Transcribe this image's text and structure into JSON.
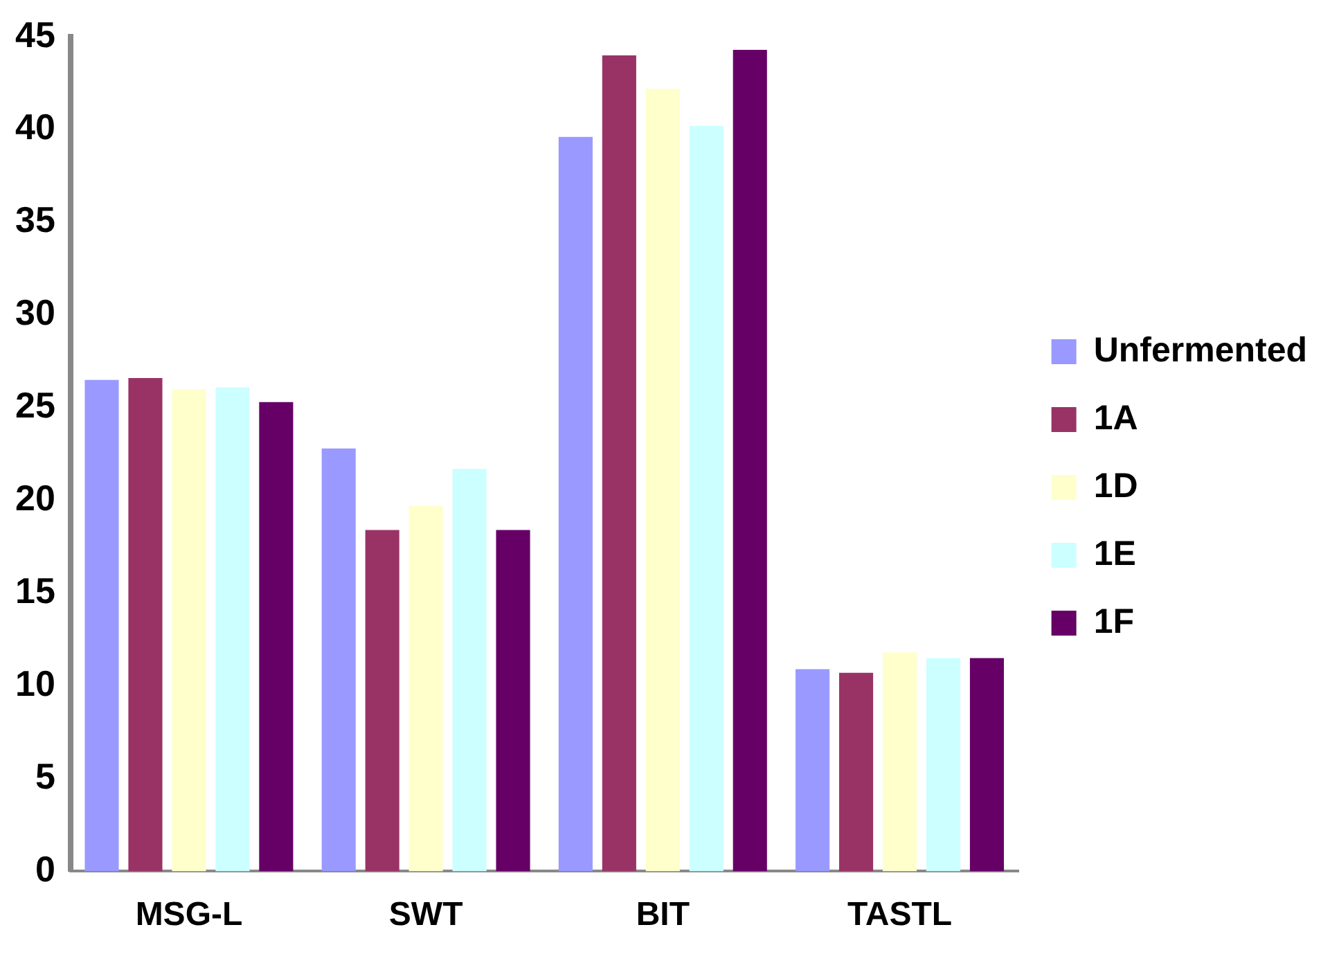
{
  "chart_data": {
    "type": "bar",
    "categories": [
      "MSG-L",
      "SWT",
      "BIT",
      "TASTL"
    ],
    "series": [
      {
        "name": "Unfermented",
        "color": "#9999ff",
        "values": [
          26.5,
          22.8,
          39.6,
          10.9
        ]
      },
      {
        "name": "1A",
        "color": "#993366",
        "values": [
          26.6,
          18.4,
          44.0,
          10.7
        ]
      },
      {
        "name": "1D",
        "color": "#ffffcc",
        "values": [
          26.0,
          19.7,
          42.2,
          11.8
        ]
      },
      {
        "name": "1E",
        "color": "#ccffff",
        "values": [
          26.1,
          21.7,
          40.2,
          11.5
        ]
      },
      {
        "name": "1F",
        "color": "#660066",
        "values": [
          25.3,
          18.4,
          44.3,
          11.5
        ]
      }
    ],
    "ylim": [
      0,
      45
    ],
    "yticks": [
      0,
      5,
      10,
      15,
      20,
      25,
      30,
      35,
      40,
      45
    ],
    "grid": false,
    "legend": "right"
  }
}
